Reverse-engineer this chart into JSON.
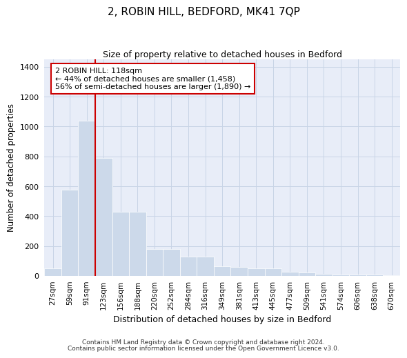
{
  "title": "2, ROBIN HILL, BEDFORD, MK41 7QP",
  "subtitle": "Size of property relative to detached houses in Bedford",
  "xlabel": "Distribution of detached houses by size in Bedford",
  "ylabel": "Number of detached properties",
  "footnote1": "Contains HM Land Registry data © Crown copyright and database right 2024.",
  "footnote2": "Contains public sector information licensed under the Open Government Licence v3.0.",
  "categories": [
    "27sqm",
    "59sqm",
    "91sqm",
    "123sqm",
    "156sqm",
    "188sqm",
    "220sqm",
    "252sqm",
    "284sqm",
    "316sqm",
    "349sqm",
    "381sqm",
    "413sqm",
    "445sqm",
    "477sqm",
    "509sqm",
    "541sqm",
    "574sqm",
    "606sqm",
    "638sqm",
    "670sqm"
  ],
  "values": [
    50,
    575,
    1040,
    790,
    430,
    430,
    180,
    180,
    130,
    130,
    65,
    60,
    50,
    50,
    27,
    20,
    15,
    10,
    8,
    8,
    5
  ],
  "bar_color": "#ccd9ea",
  "bar_edgecolor": "#ccd9ea",
  "grid_color": "#c8d4e6",
  "background_color": "#e8edf8",
  "vline_color": "#cc0000",
  "vline_x": 3,
  "annotation_text": "2 ROBIN HILL: 118sqm\n← 44% of detached houses are smaller (1,458)\n56% of semi-detached houses are larger (1,890) →",
  "annotation_box_facecolor": "#ffffff",
  "annotation_box_edgecolor": "#cc0000",
  "ylim": [
    0,
    1450
  ],
  "yticks": [
    0,
    200,
    400,
    600,
    800,
    1000,
    1200,
    1400
  ],
  "title_fontsize": 11,
  "subtitle_fontsize": 9
}
